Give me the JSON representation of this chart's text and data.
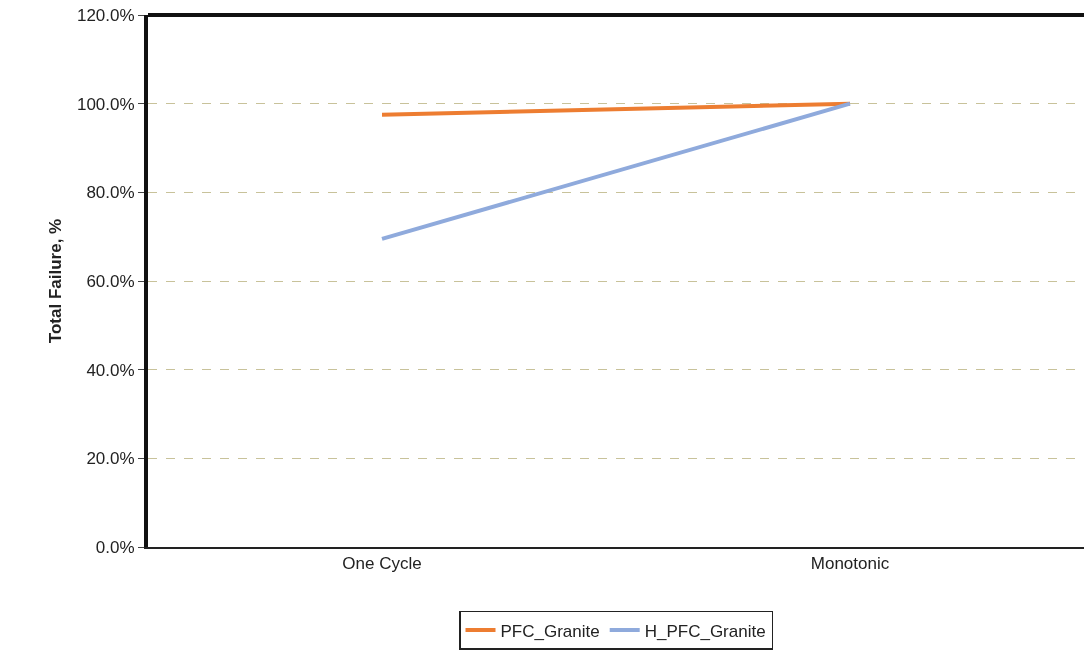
{
  "chart_data": {
    "type": "line",
    "ylabel": "Total Failure, %",
    "categories": [
      "One Cycle",
      "Monotonic"
    ],
    "series": [
      {
        "name": "PFC_Granite",
        "color": "#ed7d31",
        "values": [
          97.5,
          100
        ]
      },
      {
        "name": "H_PFC_Granite",
        "color": "#8faadc",
        "values": [
          69.5,
          100
        ]
      }
    ],
    "ylim": [
      0,
      120
    ],
    "yticks": [
      {
        "value": 0,
        "label": "0.0%"
      },
      {
        "value": 20,
        "label": "20.0%"
      },
      {
        "value": 40,
        "label": "40.0%"
      },
      {
        "value": 60,
        "label": "60.0%"
      },
      {
        "value": 80,
        "label": "80.0%"
      },
      {
        "value": 100,
        "label": "100.0%"
      },
      {
        "value": 120,
        "label": "120.0%"
      }
    ],
    "grid": "y",
    "legend": "bottom",
    "marker": "none",
    "line_style": "solid"
  }
}
